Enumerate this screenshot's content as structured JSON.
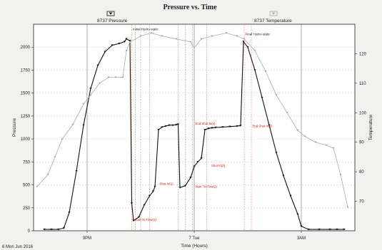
{
  "chart_data": {
    "type": "line",
    "title": "Pressure vs. Time",
    "xlabel": "Time (Hours)",
    "ylabel": "Pressure",
    "ylabel_right": "Temperature",
    "date_label": "6 Mon Jun 2016",
    "x_range_hours": [
      19.5,
      28.5
    ],
    "ylim": [
      0,
      2250
    ],
    "y2lim": [
      60,
      130
    ],
    "x_ticks": [
      {
        "hour": 21,
        "label": "9PM"
      },
      {
        "hour": 24,
        "label": "7 Tue"
      },
      {
        "hour": 27,
        "label": "3AM"
      }
    ],
    "y_ticks": [
      0,
      250,
      500,
      750,
      1000,
      1250,
      1500,
      1750,
      2000
    ],
    "y2_ticks": [
      70,
      80,
      90,
      100,
      110,
      120
    ],
    "legend": [
      {
        "name": "8737 Pressure",
        "color": "#111111"
      },
      {
        "name": "8737 Temperature",
        "color": "#a9a9a9"
      }
    ],
    "series": [
      {
        "name": "8737 Pressure",
        "axis": "left",
        "color": "#111111",
        "x": [
          19.8,
          20.0,
          20.2,
          20.35,
          20.5,
          20.7,
          20.9,
          21.1,
          21.3,
          21.5,
          21.7,
          21.9,
          22.05,
          22.1,
          22.2,
          22.25,
          22.3,
          22.45,
          22.6,
          22.75,
          22.85,
          22.9,
          23.0,
          23.1,
          23.2,
          23.3,
          23.4,
          23.5,
          23.55,
          23.6,
          23.75,
          23.9,
          24.0,
          24.1,
          24.2,
          24.3,
          24.4,
          24.5,
          24.6,
          24.8,
          25.0,
          25.2,
          25.3,
          25.38,
          25.5,
          25.7,
          25.9,
          26.1,
          26.3,
          26.5,
          26.7,
          26.9,
          27.0,
          27.2,
          27.5,
          27.8,
          28.0,
          28.2
        ],
        "y": [
          15,
          15,
          15,
          30,
          200,
          650,
          1150,
          1550,
          1800,
          1950,
          2020,
          2040,
          2060,
          2090,
          2070,
          300,
          110,
          150,
          280,
          380,
          430,
          480,
          1100,
          1130,
          1140,
          1150,
          1150,
          1155,
          1160,
          470,
          490,
          580,
          700,
          750,
          790,
          1100,
          1115,
          1120,
          1125,
          1130,
          1135,
          1140,
          1145,
          2060,
          2000,
          1750,
          1450,
          1150,
          850,
          600,
          380,
          180,
          50,
          15,
          15,
          15,
          15,
          15
        ]
      },
      {
        "name": "8737 Temperature",
        "axis": "right",
        "color": "#a9a9a9",
        "x": [
          19.6,
          19.9,
          20.1,
          20.3,
          20.6,
          20.9,
          21.1,
          21.35,
          21.6,
          21.8,
          22.0,
          22.1,
          22.2,
          22.5,
          22.8,
          23.1,
          23.5,
          23.9,
          24.0,
          24.2,
          24.5,
          24.9,
          25.2,
          25.4,
          25.7,
          26.0,
          26.3,
          26.6,
          26.9,
          27.1,
          27.4,
          27.7,
          27.9,
          28.1,
          28.3
        ],
        "y": [
          75,
          79,
          85,
          91,
          96,
          103,
          106,
          110,
          112,
          112,
          112,
          121,
          124,
          126,
          127,
          126,
          125,
          124,
          122,
          125,
          126,
          127,
          126,
          125,
          121,
          114,
          106,
          100,
          94,
          92,
          90,
          89,
          88,
          79,
          68
        ]
      }
    ],
    "annotations": [
      {
        "text": "Initial Hydro-static",
        "hour": 22.25,
        "value": 2185,
        "style": "dark"
      },
      {
        "text": "Final Hydro-static",
        "hour": 25.4,
        "value": 2130,
        "style": "dark"
      },
      {
        "text": "Start To Flow(1)",
        "hour": 22.3,
        "value": 110,
        "style": "red"
      },
      {
        "text": "Shut-In(1)",
        "hour": 23.0,
        "value": 500,
        "style": "red"
      },
      {
        "text": "End Shut-In(1)",
        "hour": 24.0,
        "value": 1155,
        "style": "red"
      },
      {
        "text": "Start To Flow(2)",
        "hour": 24.0,
        "value": 470,
        "style": "red"
      },
      {
        "text": "Shut-In(2)",
        "hour": 24.45,
        "value": 700,
        "style": "red"
      },
      {
        "text": "End Shut-In(2)",
        "hour": 25.6,
        "value": 1130,
        "style": "red"
      }
    ],
    "event_lines_hours": [
      22.25,
      22.35,
      22.5,
      22.75,
      23.55,
      23.75,
      23.95,
      24.35,
      25.4,
      25.6
    ],
    "grid": true
  }
}
